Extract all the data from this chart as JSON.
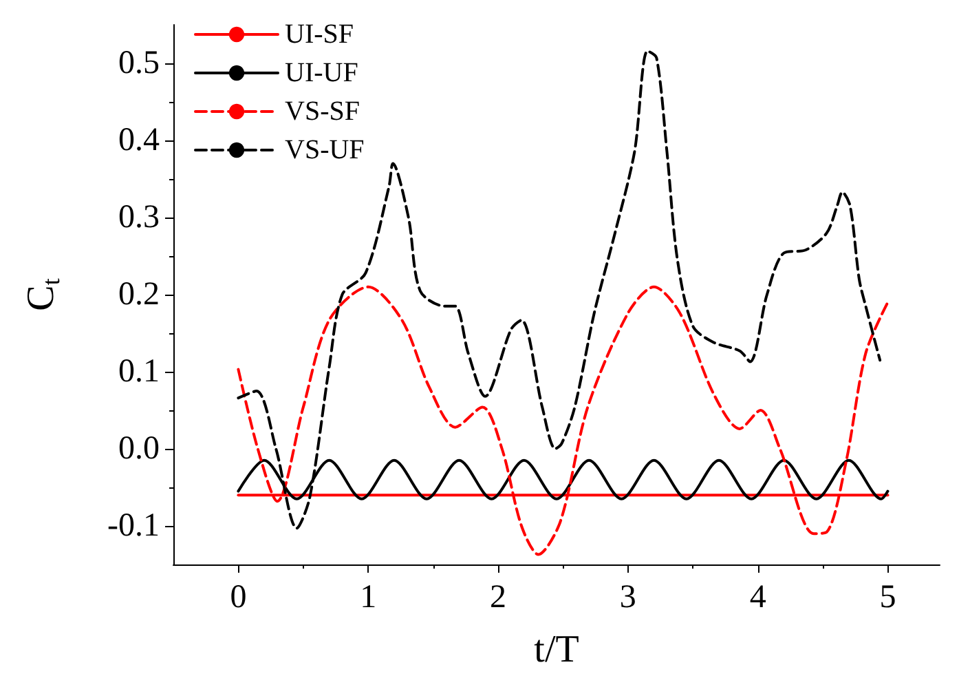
{
  "chart_data": {
    "type": "line",
    "xlabel": "t/T",
    "ylabel": "C$_{t}$",
    "xlim": [
      -0.5,
      5.4
    ],
    "ylim": [
      -0.15,
      0.55
    ],
    "xticks": [
      0,
      1,
      2,
      3,
      4,
      5
    ],
    "yticks": [
      -0.1,
      {
        "value": 0,
        "label": "0.0"
      },
      0.1,
      0.2,
      0.3,
      0.4,
      0.5
    ],
    "legend": "top left",
    "grid": false,
    "marker": "none",
    "series": [
      {
        "name": "UI-SF",
        "color": "#ff0000",
        "line_style": "solid",
        "x": [
          0,
          5
        ],
        "values": [
          -0.06,
          -0.06
        ]
      },
      {
        "name": "UI-UF",
        "color": "#000000",
        "line_style": "solid",
        "x": [
          0,
          0.2,
          0.45,
          0.7,
          0.95,
          1.2,
          1.45,
          1.7,
          1.95,
          2.2,
          2.45,
          2.7,
          2.95,
          3.2,
          3.45,
          3.7,
          3.95,
          4.2,
          4.45,
          4.7,
          4.95,
          5
        ],
        "values": [
          -0.055,
          -0.015,
          -0.065,
          -0.015,
          -0.065,
          -0.015,
          -0.065,
          -0.015,
          -0.065,
          -0.015,
          -0.065,
          -0.015,
          -0.065,
          -0.015,
          -0.065,
          -0.015,
          -0.065,
          -0.015,
          -0.065,
          -0.015,
          -0.065,
          -0.055
        ]
      },
      {
        "name": "VS-SF",
        "color": "#ff0000",
        "line_style": "dashed",
        "x": [
          0,
          0.15,
          0.3,
          0.5,
          0.7,
          1.0,
          1.26,
          1.47,
          1.67,
          1.88,
          2.03,
          2.18,
          2.31,
          2.48,
          2.69,
          3.0,
          3.2,
          3.4,
          3.66,
          3.86,
          4.02,
          4.17,
          4.43,
          4.53,
          4.68,
          4.83,
          5.0
        ],
        "values": [
          0.103,
          0.0,
          -0.068,
          0.054,
          0.167,
          0.21,
          0.167,
          0.08,
          0.028,
          0.054,
          0.0,
          -0.1,
          -0.137,
          -0.094,
          0.054,
          0.176,
          0.21,
          0.176,
          0.071,
          0.026,
          0.05,
          0.0,
          -0.11,
          -0.108,
          -0.016,
          0.124,
          0.19
        ]
      },
      {
        "name": "VS-UF",
        "color": "#000000",
        "line_style": "dashed",
        "x": [
          0,
          0.14,
          0.29,
          0.45,
          0.55,
          0.7,
          0.8,
          0.98,
          1.16,
          1.19,
          1.31,
          1.4,
          1.59,
          1.67,
          1.77,
          1.9,
          2.1,
          2.18,
          2.34,
          2.44,
          2.49,
          2.59,
          2.74,
          2.9,
          3.05,
          3.15,
          3.22,
          3.3,
          3.38,
          3.5,
          3.66,
          3.86,
          3.94,
          4.07,
          4.2,
          4.37,
          4.53,
          4.61,
          4.65,
          4.71,
          4.78,
          4.83,
          4.94
        ],
        "values": [
          0.066,
          0.075,
          0.0,
          -0.103,
          -0.063,
          0.106,
          0.2,
          0.228,
          0.34,
          0.37,
          0.3,
          0.205,
          0.185,
          0.185,
          0.124,
          0.068,
          0.155,
          0.167,
          0.054,
          0.0,
          0.007,
          0.054,
          0.176,
          0.28,
          0.385,
          0.516,
          0.507,
          0.385,
          0.246,
          0.159,
          0.138,
          0.127,
          0.113,
          0.2,
          0.254,
          0.258,
          0.28,
          0.315,
          0.333,
          0.315,
          0.22,
          0.185,
          0.115
        ]
      }
    ]
  }
}
